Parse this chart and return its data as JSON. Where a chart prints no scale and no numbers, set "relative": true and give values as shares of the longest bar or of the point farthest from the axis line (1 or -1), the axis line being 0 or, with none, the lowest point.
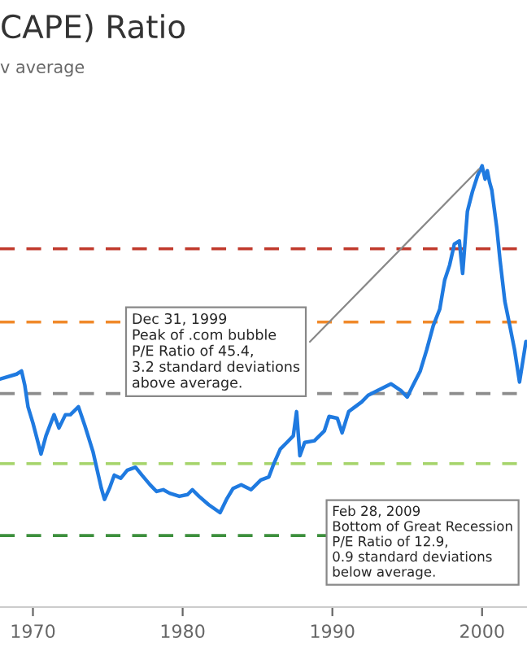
{
  "chart_data": {
    "type": "line",
    "title": "CAPE) Ratio",
    "subtitle": "v average",
    "relative": true,
    "tick_labels": "x",
    "grid": false,
    "marker": "none",
    "line_style": "solid",
    "xlim": [
      1967.8,
      2003.0
    ],
    "xticks": [
      1970,
      1980,
      1990,
      2000
    ],
    "x": [
      1967.83,
      1968.91,
      1969.24,
      1969.46,
      1969.67,
      1970.0,
      1970.54,
      1970.87,
      1971.41,
      1971.74,
      1972.17,
      1972.5,
      1973.04,
      1973.48,
      1974.02,
      1974.57,
      1974.78,
      1975.11,
      1975.43,
      1975.87,
      1976.3,
      1976.85,
      1977.28,
      1977.83,
      1978.26,
      1978.7,
      1979.13,
      1979.78,
      1980.33,
      1980.65,
      1981.09,
      1981.74,
      1982.5,
      1982.93,
      1983.37,
      1983.91,
      1984.57,
      1985.22,
      1985.76,
      1986.09,
      1986.52,
      1986.96,
      1987.39,
      1987.61,
      1987.83,
      1988.15,
      1988.8,
      1989.46,
      1989.78,
      1990.33,
      1990.65,
      1991.09,
      1991.52,
      1991.96,
      1992.39,
      1993.04,
      1993.91,
      1994.57,
      1995.0,
      1995.33,
      1995.87,
      1996.3,
      1996.74,
      1997.17,
      1997.5,
      1997.83,
      1998.15,
      1998.48,
      1998.7,
      1999.02,
      1999.35,
      1999.7,
      2000.0,
      2000.2,
      2000.35,
      2000.5,
      2000.65,
      2000.98,
      2001.2,
      2001.52,
      2001.85,
      2002.17,
      2002.5,
      2002.72,
      2002.93
    ],
    "series": [
      {
        "color": "#1f7ae0",
        "values": [
          0.517,
          0.528,
          0.535,
          0.502,
          0.454,
          0.417,
          0.347,
          0.388,
          0.436,
          0.406,
          0.436,
          0.436,
          0.454,
          0.41,
          0.351,
          0.269,
          0.244,
          0.269,
          0.299,
          0.292,
          0.31,
          0.317,
          0.299,
          0.277,
          0.262,
          0.266,
          0.258,
          0.251,
          0.255,
          0.266,
          0.251,
          0.232,
          0.214,
          0.244,
          0.269,
          0.277,
          0.266,
          0.288,
          0.295,
          0.325,
          0.358,
          0.373,
          0.388,
          0.443,
          0.343,
          0.373,
          0.377,
          0.399,
          0.432,
          0.428,
          0.395,
          0.443,
          0.454,
          0.465,
          0.48,
          0.491,
          0.506,
          0.491,
          0.476,
          0.499,
          0.535,
          0.583,
          0.638,
          0.675,
          0.741,
          0.775,
          0.823,
          0.83,
          0.756,
          0.897,
          0.941,
          0.978,
          1,
          0.97,
          0.989,
          0.963,
          0.945,
          0.86,
          0.786,
          0.693,
          0.638,
          0.583,
          0.51,
          0.557,
          0.602
        ]
      }
    ],
    "ref_lines": [
      {
        "axis": "y",
        "value": 0.812,
        "color": "#c0392b",
        "line_style": "dashed"
      },
      {
        "axis": "y",
        "value": 0.646,
        "color": "#f0892a",
        "line_style": "dashed"
      },
      {
        "axis": "y",
        "value": 0.484,
        "color": "#8c8c8c",
        "line_style": "dashed"
      },
      {
        "axis": "y",
        "value": 0.325,
        "color": "#a5d46a",
        "line_style": "dashed"
      },
      {
        "axis": "y",
        "value": 0.162,
        "color": "#3d8f3d",
        "line_style": "dashed"
      }
    ],
    "annotations": [
      {
        "text": "Dec 31, 1999\nPeak of .com bubble\nP/E Ratio of 45.4,\n3.2 standard deviations\nabove average.",
        "x": 2000.0,
        "y": 1
      },
      "Feb 28, 2009\nBottom of Great Recession\nP/E Ratio of 12.9,\n0.9 standard deviations\nbelow average."
    ]
  }
}
